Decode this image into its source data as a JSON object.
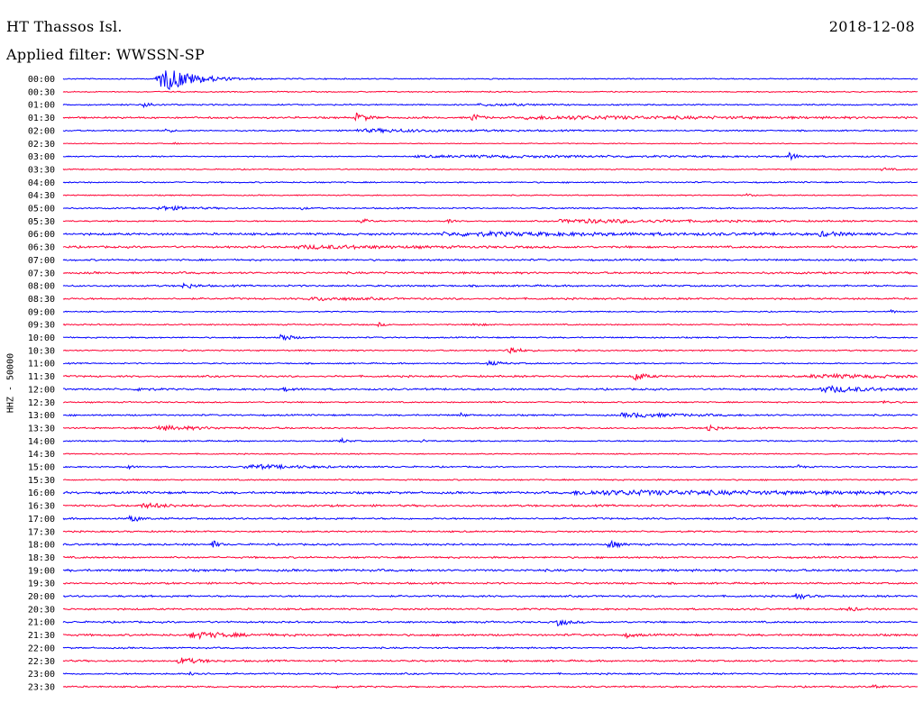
{
  "header": {
    "station": "HT Thassos Isl.",
    "date": "2018-12-08",
    "filter": "Applied filter: WWSSN-SP",
    "channel": "HHZ - 50000"
  },
  "colors": {
    "blue": "#0000ff",
    "red": "#ff0033"
  },
  "chart_data": {
    "type": "line",
    "title": "",
    "xlabel": "",
    "ylabel": "HHZ - 50000",
    "grid": false,
    "legend": "none",
    "categories": [
      "00:00",
      "00:30",
      "01:00",
      "01:30",
      "02:00",
      "02:30",
      "03:00",
      "03:30",
      "04:00",
      "04:30",
      "05:00",
      "05:30",
      "06:00",
      "06:30",
      "07:00",
      "07:30",
      "08:00",
      "08:30",
      "09:00",
      "09:30",
      "10:00",
      "10:30",
      "11:00",
      "11:30",
      "12:00",
      "12:30",
      "13:00",
      "13:30",
      "14:00",
      "14:30",
      "15:00",
      "15:30",
      "16:00",
      "16:30",
      "17:00",
      "17:30",
      "18:00",
      "18:30",
      "19:00",
      "19:30",
      "20:00",
      "20:30",
      "21:00",
      "21:30",
      "22:00",
      "22:30",
      "23:00",
      "23:30"
    ],
    "series": [
      {
        "noise": 0.5,
        "events": [
          {
            "x": 0.117,
            "amp": 10,
            "width": 0.03
          },
          {
            "x": 0.13,
            "amp": 4,
            "width": 0.03
          }
        ]
      },
      {
        "noise": 0.5,
        "events": []
      },
      {
        "noise": 0.6,
        "events": [
          {
            "x": 0.095,
            "amp": 3,
            "width": 0.01
          },
          {
            "x": 0.5,
            "amp": 1,
            "width": 0.05
          }
        ]
      },
      {
        "noise": 0.8,
        "events": [
          {
            "x": 0.345,
            "amp": 5,
            "width": 0.01
          },
          {
            "x": 0.48,
            "amp": 4,
            "width": 0.008
          },
          {
            "x": 0.6,
            "amp": 1.5,
            "width": 0.2
          }
        ]
      },
      {
        "noise": 0.6,
        "events": [
          {
            "x": 0.12,
            "amp": 3,
            "width": 0.005
          },
          {
            "x": 0.37,
            "amp": 1.5,
            "width": 0.1
          }
        ]
      },
      {
        "noise": 0.4,
        "events": [
          {
            "x": 0.13,
            "amp": 1,
            "width": 0.005
          }
        ]
      },
      {
        "noise": 0.5,
        "events": [
          {
            "x": 0.5,
            "amp": 1,
            "width": 0.3
          },
          {
            "x": 0.85,
            "amp": 4,
            "width": 0.008
          }
        ]
      },
      {
        "noise": 0.5,
        "events": [
          {
            "x": 0.96,
            "amp": 1.5,
            "width": 0.01
          }
        ]
      },
      {
        "noise": 0.6,
        "events": []
      },
      {
        "noise": 0.5,
        "events": [
          {
            "x": 0.8,
            "amp": 2,
            "width": 0.005
          }
        ]
      },
      {
        "noise": 0.6,
        "events": [
          {
            "x": 0.12,
            "amp": 2,
            "width": 0.03
          },
          {
            "x": 0.28,
            "amp": 1.5,
            "width": 0.005
          }
        ]
      },
      {
        "noise": 0.6,
        "events": [
          {
            "x": 0.35,
            "amp": 2,
            "width": 0.01
          },
          {
            "x": 0.45,
            "amp": 2,
            "width": 0.005
          },
          {
            "x": 0.62,
            "amp": 1.8,
            "width": 0.13
          }
        ]
      },
      {
        "noise": 1.0,
        "events": [
          {
            "x": 0.5,
            "amp": 1.5,
            "width": 0.2
          },
          {
            "x": 0.89,
            "amp": 2,
            "width": 0.02
          }
        ]
      },
      {
        "noise": 0.9,
        "events": [
          {
            "x": 0.3,
            "amp": 1.5,
            "width": 0.1
          }
        ]
      },
      {
        "noise": 0.8,
        "events": []
      },
      {
        "noise": 0.9,
        "events": []
      },
      {
        "noise": 0.8,
        "events": [
          {
            "x": 0.143,
            "amp": 3,
            "width": 0.01
          }
        ]
      },
      {
        "noise": 0.8,
        "events": [
          {
            "x": 0.3,
            "amp": 1.5,
            "width": 0.05
          }
        ]
      },
      {
        "noise": 0.5,
        "events": [
          {
            "x": 0.97,
            "amp": 2,
            "width": 0.005
          }
        ]
      },
      {
        "noise": 0.6,
        "events": [
          {
            "x": 0.37,
            "amp": 2,
            "width": 0.005
          },
          {
            "x": 0.48,
            "amp": 1.5,
            "width": 0.01
          }
        ]
      },
      {
        "noise": 0.6,
        "events": [
          {
            "x": 0.255,
            "amp": 5,
            "width": 0.01
          }
        ]
      },
      {
        "noise": 0.6,
        "events": [
          {
            "x": 0.52,
            "amp": 6,
            "width": 0.01
          },
          {
            "x": 0.6,
            "amp": 2,
            "width": 0.005
          }
        ]
      },
      {
        "noise": 0.6,
        "events": [
          {
            "x": 0.5,
            "amp": 2,
            "width": 0.015
          }
        ]
      },
      {
        "noise": 0.8,
        "events": [
          {
            "x": 0.67,
            "amp": 5,
            "width": 0.01
          },
          {
            "x": 0.9,
            "amp": 1.5,
            "width": 0.1
          }
        ]
      },
      {
        "noise": 0.8,
        "events": [
          {
            "x": 0.09,
            "amp": 2,
            "width": 0.01
          },
          {
            "x": 0.26,
            "amp": 2,
            "width": 0.01
          },
          {
            "x": 0.9,
            "amp": 3,
            "width": 0.05
          }
        ]
      },
      {
        "noise": 0.6,
        "events": [
          {
            "x": 0.5,
            "amp": 1.5,
            "width": 0.005
          },
          {
            "x": 0.96,
            "amp": 1.5,
            "width": 0.01
          }
        ]
      },
      {
        "noise": 0.7,
        "events": [
          {
            "x": 0.465,
            "amp": 2.5,
            "width": 0.005
          },
          {
            "x": 0.67,
            "amp": 2,
            "width": 0.06
          }
        ]
      },
      {
        "noise": 0.7,
        "events": [
          {
            "x": 0.12,
            "amp": 2,
            "width": 0.05
          },
          {
            "x": 0.755,
            "amp": 4,
            "width": 0.01
          }
        ]
      },
      {
        "noise": 0.6,
        "events": [
          {
            "x": 0.325,
            "amp": 3,
            "width": 0.006
          },
          {
            "x": 0.42,
            "amp": 2,
            "width": 0.005
          }
        ]
      },
      {
        "noise": 0.5,
        "events": []
      },
      {
        "noise": 0.6,
        "events": [
          {
            "x": 0.075,
            "amp": 3,
            "width": 0.005
          },
          {
            "x": 0.23,
            "amp": 2,
            "width": 0.06
          },
          {
            "x": 0.86,
            "amp": 2,
            "width": 0.005
          }
        ]
      },
      {
        "noise": 0.6,
        "events": []
      },
      {
        "noise": 1.0,
        "events": [
          {
            "x": 0.67,
            "amp": 2,
            "width": 0.25
          }
        ]
      },
      {
        "noise": 0.9,
        "events": [
          {
            "x": 0.1,
            "amp": 2,
            "width": 0.03
          }
        ]
      },
      {
        "noise": 0.8,
        "events": [
          {
            "x": 0.08,
            "amp": 4,
            "width": 0.008
          }
        ]
      },
      {
        "noise": 0.7,
        "events": []
      },
      {
        "noise": 0.8,
        "events": [
          {
            "x": 0.175,
            "amp": 5,
            "width": 0.005
          },
          {
            "x": 0.64,
            "amp": 5,
            "width": 0.008
          }
        ]
      },
      {
        "noise": 0.8,
        "events": []
      },
      {
        "noise": 1.0,
        "events": []
      },
      {
        "noise": 0.8,
        "events": []
      },
      {
        "noise": 0.8,
        "events": [
          {
            "x": 0.86,
            "amp": 3,
            "width": 0.01
          }
        ]
      },
      {
        "noise": 0.8,
        "events": [
          {
            "x": 0.92,
            "amp": 2,
            "width": 0.01
          }
        ]
      },
      {
        "noise": 0.8,
        "events": [
          {
            "x": 0.58,
            "amp": 4,
            "width": 0.01
          }
        ]
      },
      {
        "noise": 0.9,
        "events": [
          {
            "x": 0.16,
            "amp": 3,
            "width": 0.04
          },
          {
            "x": 0.66,
            "amp": 2,
            "width": 0.01
          }
        ]
      },
      {
        "noise": 0.7,
        "events": []
      },
      {
        "noise": 0.8,
        "events": [
          {
            "x": 0.14,
            "amp": 3,
            "width": 0.02
          }
        ]
      },
      {
        "noise": 0.7,
        "events": [
          {
            "x": 0.15,
            "amp": 3,
            "width": 0.008
          }
        ]
      },
      {
        "noise": 0.7,
        "events": [
          {
            "x": 0.32,
            "amp": 1.5,
            "width": 0.005
          },
          {
            "x": 0.95,
            "amp": 2,
            "width": 0.01
          }
        ]
      }
    ]
  }
}
